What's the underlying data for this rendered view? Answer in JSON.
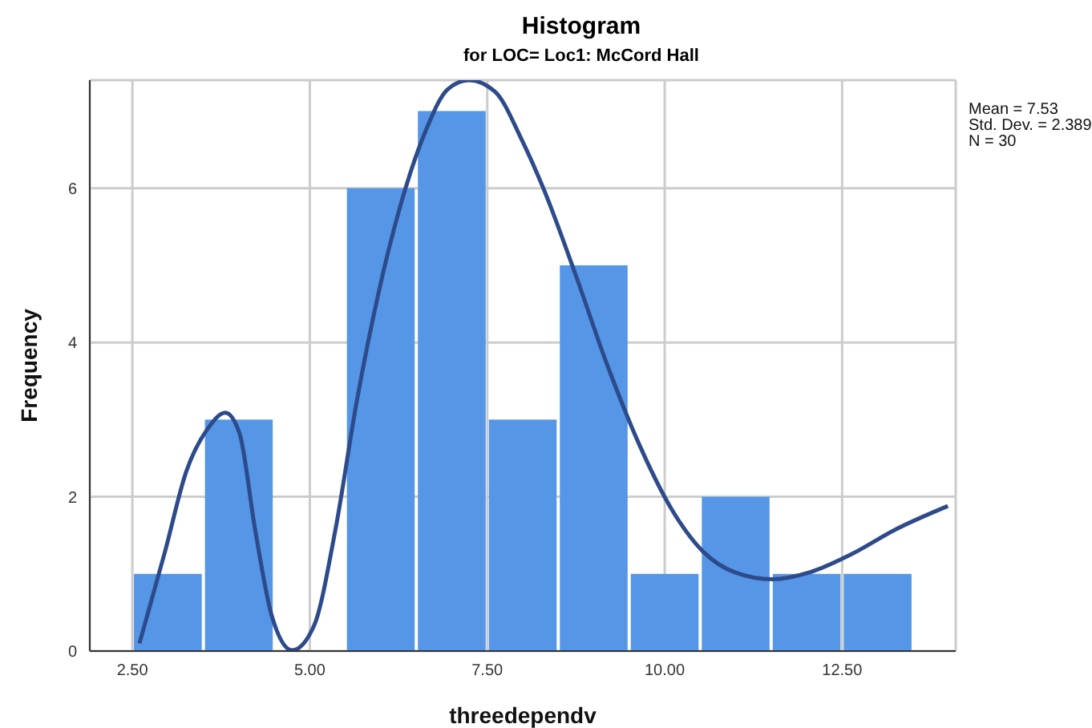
{
  "chart_data": {
    "type": "histogram",
    "title": "Histogram",
    "subtitle": "for LOC= Loc1: McCord Hall",
    "xlabel": "threedependv",
    "ylabel": "Frequency",
    "bins": [
      2.5,
      3.5,
      4.5,
      5.5,
      6.5,
      7.5,
      8.5,
      9.5,
      10.5,
      11.5,
      12.5,
      13.5
    ],
    "values": [
      1,
      3,
      0,
      6,
      7,
      3,
      5,
      1,
      2,
      1,
      1
    ],
    "color": "#5596e6",
    "series": [
      {
        "type": "line",
        "color": "#2d4a8a",
        "x": [
          2.6,
          2.96,
          3.26,
          3.56,
          3.81,
          4.01,
          4.23,
          4.46,
          4.75,
          5.06,
          5.36,
          5.66,
          5.96,
          6.26,
          6.64,
          6.94,
          7.24,
          7.61,
          7.99,
          8.29,
          8.74,
          9.19,
          9.64,
          10.09,
          10.54,
          10.99,
          11.52,
          12.04,
          12.64,
          13.24,
          13.99
        ],
        "values": [
          0.1,
          1.29,
          2.33,
          2.88,
          3.09,
          2.82,
          1.57,
          0.47,
          0.01,
          0.33,
          1.57,
          3.23,
          4.61,
          5.72,
          6.76,
          7.28,
          7.4,
          7.25,
          6.62,
          6.0,
          4.89,
          3.71,
          2.68,
          1.85,
          1.29,
          1.02,
          0.93,
          1.02,
          1.26,
          1.57,
          1.88
        ]
      }
    ],
    "xlim": [
      1.9,
      14.1
    ],
    "ylim": [
      0,
      7.4
    ],
    "xticks": [
      {
        "value": 2.5,
        "label": "2.50"
      },
      {
        "value": 5,
        "label": "5.00"
      },
      {
        "value": 7.5,
        "label": "7.50"
      },
      {
        "value": 10,
        "label": "10.00"
      },
      {
        "value": 12.5,
        "label": "12.50"
      }
    ],
    "yticks": [
      0,
      2,
      4,
      6
    ],
    "grid": true,
    "annotations": [
      "Mean = 7.53",
      "Std. Dev. = 2.389",
      "N = 30"
    ]
  }
}
